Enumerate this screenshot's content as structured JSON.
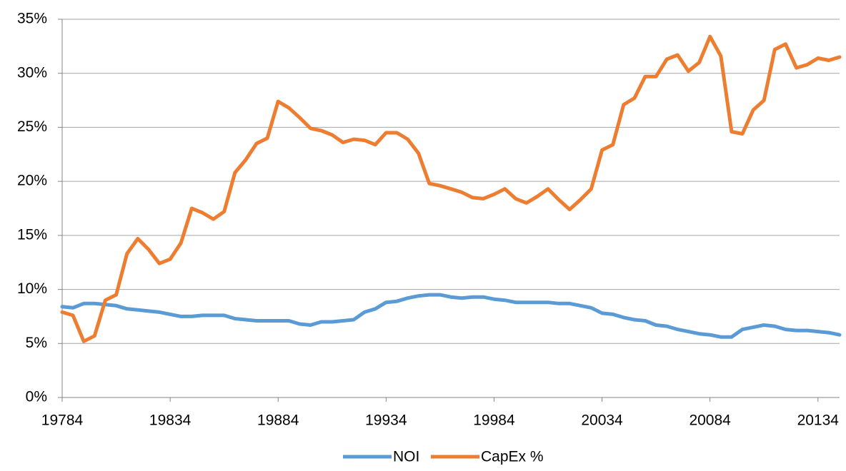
{
  "chart_data": {
    "type": "line",
    "categories": [
      "19784",
      null,
      null,
      null,
      null,
      null,
      null,
      null,
      null,
      null,
      "19834",
      null,
      null,
      null,
      null,
      null,
      null,
      null,
      null,
      null,
      "19884",
      null,
      null,
      null,
      null,
      null,
      null,
      null,
      null,
      null,
      "19934",
      null,
      null,
      null,
      null,
      null,
      null,
      null,
      null,
      null,
      "19984",
      null,
      null,
      null,
      null,
      null,
      null,
      null,
      null,
      null,
      "20034",
      null,
      null,
      null,
      null,
      null,
      null,
      null,
      null,
      null,
      "20084",
      null,
      null,
      null,
      null,
      null,
      null,
      null,
      null,
      null,
      "20134",
      null,
      null
    ],
    "series": [
      {
        "name": "NOI",
        "color": "#5b9bd5",
        "values": [
          8.4,
          8.3,
          8.7,
          8.7,
          8.6,
          8.5,
          8.2,
          8.1,
          8.0,
          7.9,
          7.7,
          7.5,
          7.5,
          7.6,
          7.6,
          7.6,
          7.3,
          7.2,
          7.1,
          7.1,
          7.1,
          7.1,
          6.8,
          6.7,
          7.0,
          7.0,
          7.1,
          7.2,
          7.9,
          8.2,
          8.8,
          8.9,
          9.2,
          9.4,
          9.5,
          9.5,
          9.3,
          9.2,
          9.3,
          9.3,
          9.1,
          9.0,
          8.8,
          8.8,
          8.8,
          8.8,
          8.7,
          8.7,
          8.5,
          8.3,
          7.8,
          7.7,
          7.4,
          7.2,
          7.1,
          6.7,
          6.6,
          6.3,
          6.1,
          5.9,
          5.8,
          5.6,
          5.6,
          6.3,
          6.5,
          6.7,
          6.6,
          6.3,
          6.2,
          6.2,
          6.1,
          6.0,
          5.8
        ]
      },
      {
        "name": "CapEx %",
        "color": "#ed7d31",
        "values": [
          7.9,
          7.6,
          5.2,
          5.7,
          9.0,
          9.5,
          13.3,
          14.7,
          13.7,
          12.4,
          12.8,
          14.3,
          17.5,
          17.1,
          16.5,
          17.2,
          20.8,
          22.0,
          23.5,
          24.0,
          27.4,
          26.8,
          25.9,
          24.9,
          24.7,
          24.3,
          23.6,
          23.9,
          23.8,
          23.4,
          24.5,
          24.5,
          23.9,
          22.6,
          19.8,
          19.6,
          19.3,
          19.0,
          18.5,
          18.4,
          18.8,
          19.3,
          18.4,
          18.0,
          18.6,
          19.3,
          18.3,
          17.4,
          18.3,
          19.3,
          22.9,
          23.4,
          27.1,
          27.7,
          29.7,
          29.7,
          31.3,
          31.7,
          30.2,
          31.0,
          33.4,
          31.6,
          24.6,
          24.4,
          26.6,
          27.5,
          32.2,
          32.7,
          30.5,
          30.8,
          31.4,
          31.2,
          31.5
        ]
      }
    ],
    "ylim": [
      0,
      35
    ],
    "yticks": [
      {
        "value": 0,
        "label": "0%"
      },
      {
        "value": 5,
        "label": "5%"
      },
      {
        "value": 10,
        "label": "10%"
      },
      {
        "value": 15,
        "label": "15%"
      },
      {
        "value": 20,
        "label": "20%"
      },
      {
        "value": 25,
        "label": "25%"
      },
      {
        "value": 30,
        "label": "30%"
      },
      {
        "value": 35,
        "label": "35%"
      }
    ],
    "grid": true,
    "legend": "bottom"
  }
}
